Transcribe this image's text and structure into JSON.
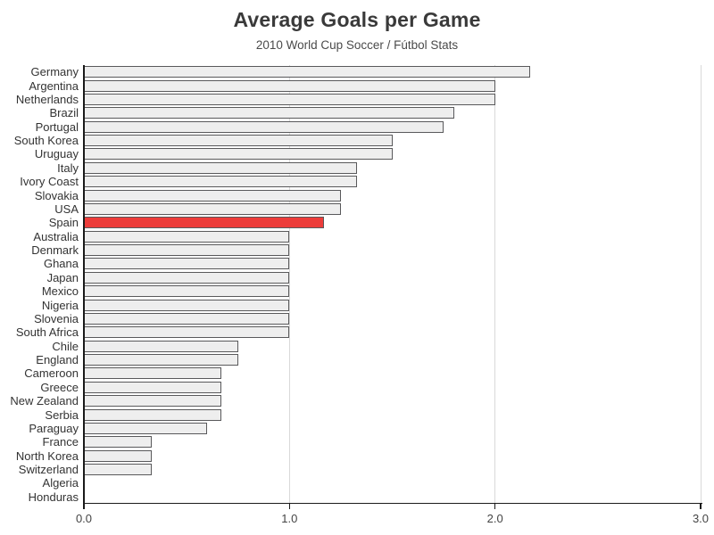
{
  "chart_data": {
    "type": "bar",
    "orientation": "horizontal",
    "title": "Average Goals per Game",
    "subtitle": "2010 World Cup Soccer / Fútbol Stats",
    "categories": [
      "Germany",
      "Argentina",
      "Netherlands",
      "Brazil",
      "Portugal",
      "South Korea",
      "Uruguay",
      "Italy",
      "Ivory Coast",
      "Slovakia",
      "USA",
      "Spain",
      "Australia",
      "Denmark",
      "Ghana",
      "Japan",
      "Mexico",
      "Nigeria",
      "Slovenia",
      "South Africa",
      "Chile",
      "England",
      "Cameroon",
      "Greece",
      "New Zealand",
      "Serbia",
      "Paraguay",
      "France",
      "North Korea",
      "Switzerland",
      "Algeria",
      "Honduras"
    ],
    "values": [
      2.17,
      2.0,
      2.0,
      1.8,
      1.75,
      1.5,
      1.5,
      1.33,
      1.33,
      1.25,
      1.25,
      1.17,
      1.0,
      1.0,
      1.0,
      1.0,
      1.0,
      1.0,
      1.0,
      1.0,
      0.75,
      0.75,
      0.67,
      0.67,
      0.67,
      0.67,
      0.6,
      0.33,
      0.33,
      0.33,
      0.0,
      0.0
    ],
    "highlight_category": "Spain",
    "xlabel": "",
    "ylabel": "",
    "xlim": [
      0.0,
      3.0
    ],
    "xtick_values": [
      0.0,
      1.0,
      2.0,
      3.0
    ],
    "xtick_labels": [
      "0.0",
      "1.0",
      "2.0",
      "3.0"
    ],
    "gridline_values": [
      1.0,
      2.0,
      3.0
    ],
    "grid": true,
    "legend": "none"
  },
  "colors": {
    "background": "#ffffff",
    "bar_fill": "#eeeeee",
    "bar_border": "#59595b",
    "highlight_fill": "#ec3c3a",
    "gridline": "#d9d9d9",
    "axis": "#1a1a1a",
    "title_text": "#3a3a3a",
    "subtitle_text": "#4a4a4a",
    "label_text": "#333333",
    "tick_text": "#444444"
  }
}
